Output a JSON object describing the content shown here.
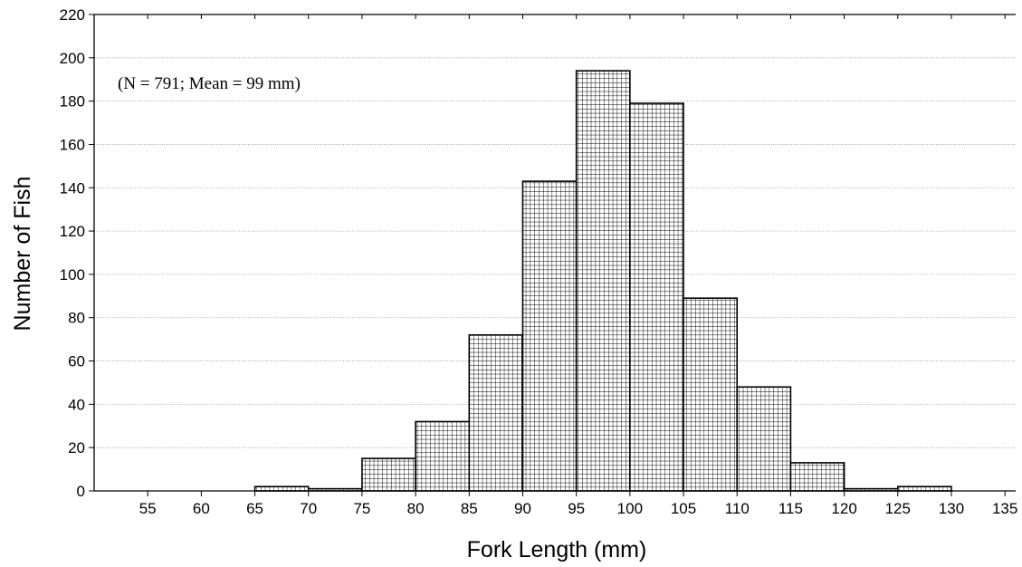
{
  "chart_data": {
    "type": "bar",
    "histogram": true,
    "bin_edges": [
      55,
      60,
      65,
      70,
      75,
      80,
      85,
      90,
      95,
      100,
      105,
      110,
      115,
      120,
      125,
      130,
      135
    ],
    "bins": [
      {
        "start": 55,
        "end": 60,
        "value": 0
      },
      {
        "start": 60,
        "end": 65,
        "value": 0
      },
      {
        "start": 65,
        "end": 70,
        "value": 2
      },
      {
        "start": 70,
        "end": 75,
        "value": 1
      },
      {
        "start": 75,
        "end": 80,
        "value": 15
      },
      {
        "start": 80,
        "end": 85,
        "value": 32
      },
      {
        "start": 85,
        "end": 90,
        "value": 72
      },
      {
        "start": 90,
        "end": 95,
        "value": 143
      },
      {
        "start": 95,
        "end": 100,
        "value": 194
      },
      {
        "start": 100,
        "end": 105,
        "value": 179
      },
      {
        "start": 105,
        "end": 110,
        "value": 89
      },
      {
        "start": 110,
        "end": 115,
        "value": 48
      },
      {
        "start": 115,
        "end": 120,
        "value": 13
      },
      {
        "start": 120,
        "end": 125,
        "value": 1
      },
      {
        "start": 125,
        "end": 130,
        "value": 2
      },
      {
        "start": 130,
        "end": 135,
        "value": 0
      }
    ],
    "annotation": "(N = 791; Mean = 99 mm)",
    "xlabel": "Fork Length (mm)",
    "ylabel": "Number of Fish",
    "xlim": [
      50,
      136
    ],
    "ylim": [
      0,
      220
    ],
    "xticks": [
      55,
      60,
      65,
      70,
      75,
      80,
      85,
      90,
      95,
      100,
      105,
      110,
      115,
      120,
      125,
      130,
      135
    ],
    "yticks": [
      0,
      20,
      40,
      60,
      80,
      100,
      120,
      140,
      160,
      180,
      200,
      220
    ],
    "grid": true,
    "bar_fill_pattern": "grid-hatch",
    "bar_color": "#000000"
  }
}
